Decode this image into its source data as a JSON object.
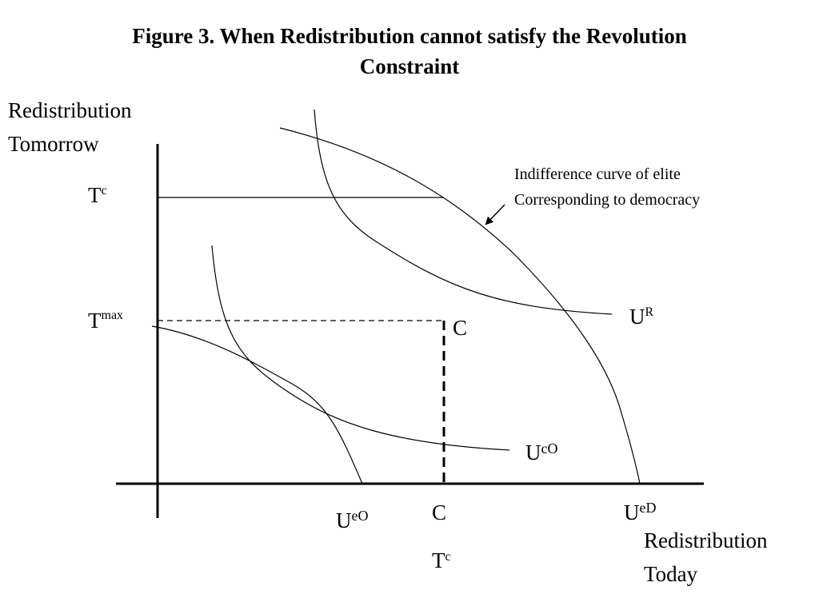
{
  "title": {
    "line1": "Figure 3. When Redistribution cannot satisfy the Revolution",
    "line2": "Constraint"
  },
  "axes": {
    "y_label_line1": "Redistribution",
    "y_label_line2": "Tomorrow",
    "x_label_line1": "Redistribution",
    "x_label_line2": "Today"
  },
  "y_ticks": {
    "tc": {
      "base": "T",
      "sup": "c"
    },
    "tmax": {
      "base": "T",
      "sup": "max"
    }
  },
  "x_ticks": {
    "ueo": {
      "base": "U",
      "sup": "eO"
    },
    "c": "C",
    "tc": {
      "base": "T",
      "sup": "c"
    },
    "ued": {
      "base": "U",
      "sup": "eD"
    }
  },
  "point_label": "C",
  "curve_labels": {
    "ur": {
      "base": "U",
      "sup": "R"
    },
    "uco": {
      "base": "U",
      "sup": "cO"
    }
  },
  "annotation": {
    "line1": "Indifference curve of elite",
    "line2": "Corresponding to democracy"
  }
}
